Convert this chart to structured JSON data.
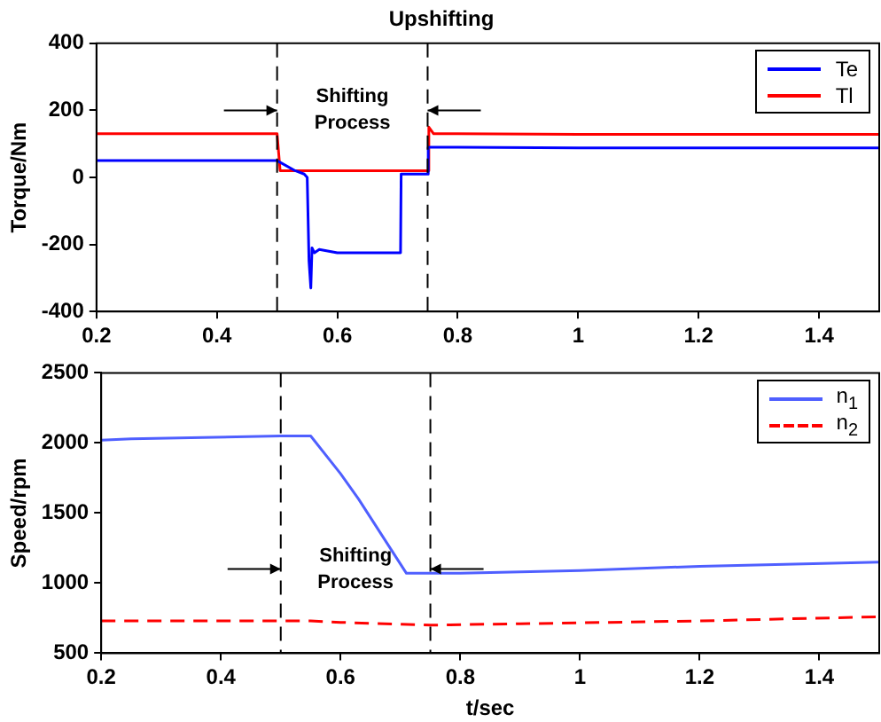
{
  "chart_data": [
    {
      "type": "line",
      "title": "Upshifting",
      "ylabel": "Torque/Nm",
      "xlim": [
        0.2,
        1.5
      ],
      "xticks": [
        0.2,
        0.4,
        0.6,
        0.8,
        1,
        1.2,
        1.4
      ],
      "ylim": [
        -400,
        400
      ],
      "yticks": [
        -400,
        -200,
        0,
        200,
        400
      ],
      "grid": false,
      "legend": "top right",
      "marker": "none",
      "series": [
        {
          "name": "Te",
          "color": "#0000ff",
          "x": [
            0.2,
            0.5,
            0.53,
            0.545,
            0.55,
            0.553,
            0.556,
            0.558,
            0.562,
            0.57,
            0.6,
            0.65,
            0.705,
            0.706,
            0.72,
            0.75,
            0.751,
            0.8,
            1.0,
            1.2,
            1.5
          ],
          "values": [
            50,
            50,
            20,
            10,
            0,
            -250,
            -330,
            -210,
            -225,
            -215,
            -225,
            -225,
            -225,
            10,
            10,
            10,
            90,
            90,
            88,
            88,
            88
          ]
        },
        {
          "name": "Tl",
          "color": "#ff0000",
          "x": [
            0.2,
            0.5,
            0.505,
            0.6,
            0.75,
            0.752,
            0.76,
            0.8,
            1.0,
            1.2,
            1.5
          ],
          "values": [
            130,
            130,
            20,
            20,
            20,
            150,
            130,
            130,
            128,
            128,
            128
          ]
        }
      ],
      "ref_lines": [
        {
          "axis": "x",
          "value": 0.5,
          "color": "#000000",
          "line_style": "dashed"
        },
        {
          "axis": "x",
          "value": 0.75,
          "color": "#000000",
          "line_style": "dashed"
        }
      ],
      "annotations": [
        "Shifting Process"
      ]
    },
    {
      "type": "line",
      "xlabel": "t/sec",
      "ylabel": "Speed/rpm",
      "xlim": [
        0.2,
        1.5
      ],
      "xticks": [
        0.2,
        0.4,
        0.6,
        0.8,
        1,
        1.2,
        1.4
      ],
      "ylim": [
        500,
        2500
      ],
      "yticks": [
        500,
        1000,
        1500,
        2000,
        2500
      ],
      "grid": false,
      "legend": "top right",
      "marker": "none",
      "series": [
        {
          "name": "n$_{1}$",
          "color": "#4f5fff",
          "x": [
            0.2,
            0.25,
            0.5,
            0.55,
            0.6,
            0.63,
            0.71,
            0.8,
            1.0,
            1.2,
            1.5
          ],
          "values": [
            2020,
            2030,
            2050,
            2050,
            1780,
            1600,
            1070,
            1070,
            1090,
            1120,
            1150
          ]
        },
        {
          "name": "n$_{2}$",
          "color": "#ff0000",
          "line_style": "dashed",
          "x": [
            0.2,
            0.55,
            0.6,
            0.75,
            0.9,
            1.2,
            1.5
          ],
          "values": [
            730,
            730,
            720,
            700,
            710,
            730,
            760
          ]
        }
      ],
      "ref_lines": [
        {
          "axis": "x",
          "value": 0.5,
          "color": "#000000",
          "line_style": "dashed"
        },
        {
          "axis": "x",
          "value": 0.75,
          "color": "#000000",
          "line_style": "dashed"
        }
      ],
      "annotations": [
        "Shifting Process"
      ]
    }
  ]
}
